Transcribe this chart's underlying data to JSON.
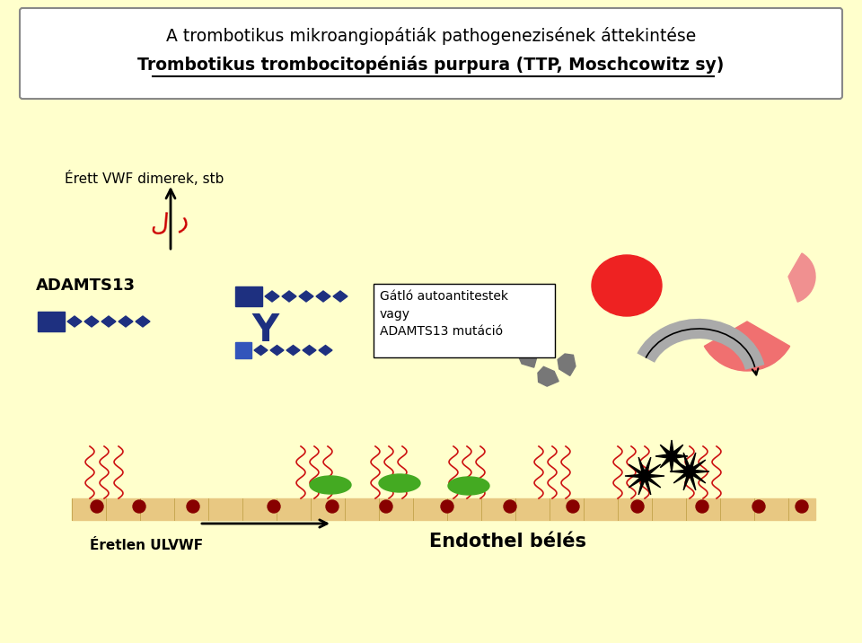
{
  "bg_color": "#FFFFCC",
  "title_box_bg": "#FFFFFF",
  "title_line1": "A trombotikus mikroangiopátiák pathogenezisének áttekintése",
  "title_line2": "Trombotikus trombocitopéniás purpura (TTP, Moschcowitz sy)",
  "label_erett": "Érett VWF dimerek, stb",
  "label_adamts13": "ADAMTS13",
  "label_gatlo": "Gátló autoantitestek\nvagy\nADAMTS13 mutáció",
  "label_eretlen": "Éretlen ULVWF",
  "label_endothel": "Endothel bélés",
  "blue_dark": "#1E3080",
  "red_circle": "#EE2222",
  "green_platelet": "#44AA22",
  "dark_red_dot": "#880000",
  "endothel_bar": "#E8C882"
}
